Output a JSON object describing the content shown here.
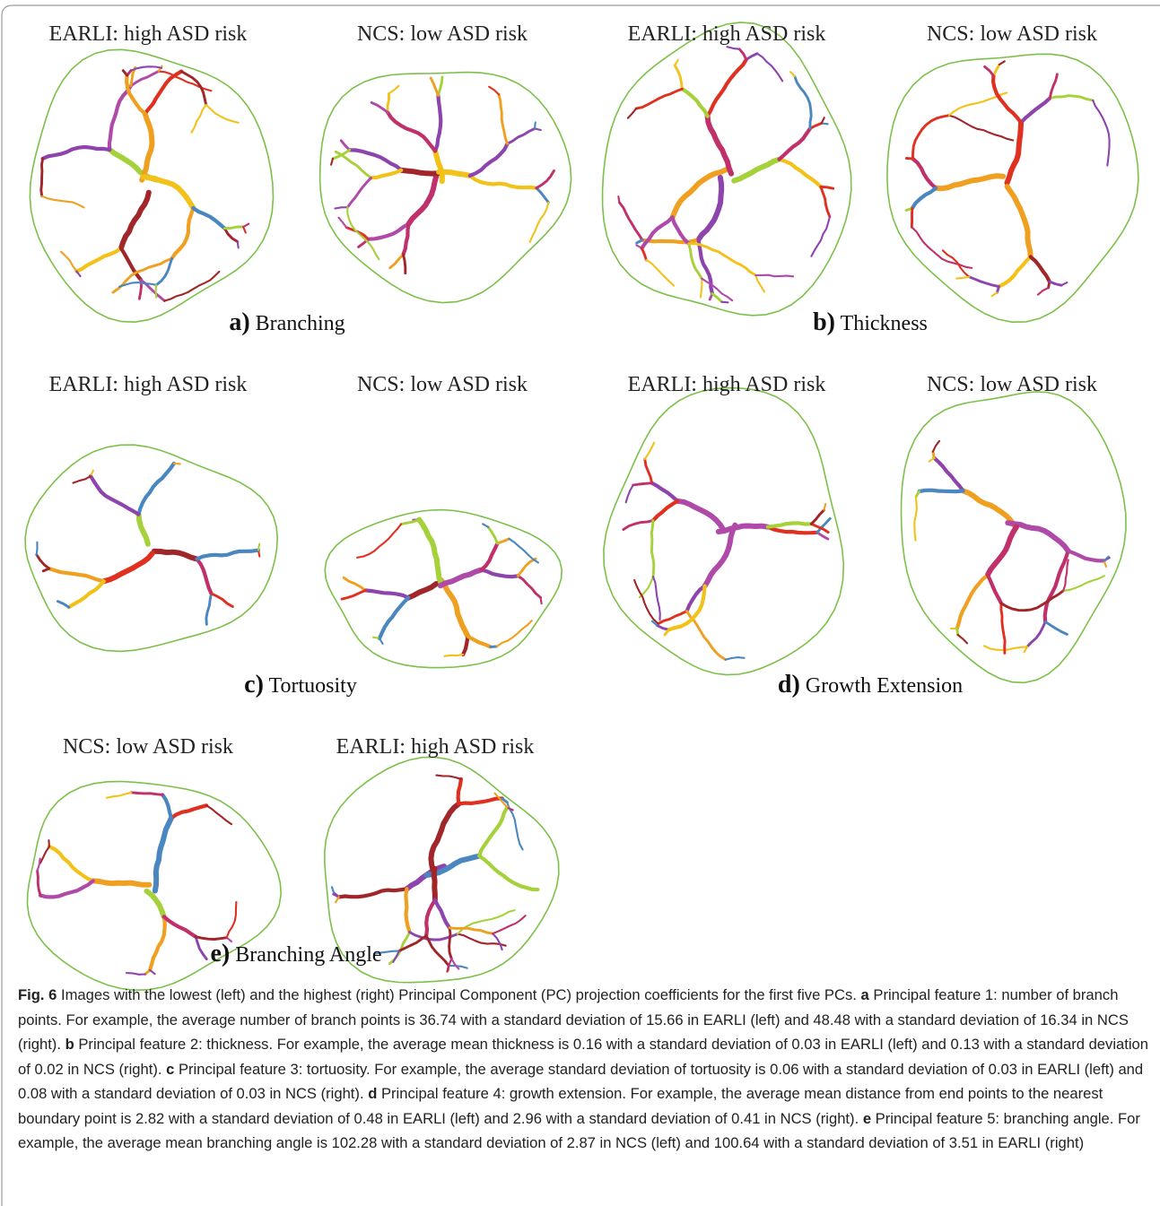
{
  "panels": [
    {
      "label": "a)",
      "name": "Branching",
      "images": [
        "EARLI: high ASD risk",
        "NCS: low ASD risk"
      ]
    },
    {
      "label": "b)",
      "name": "Thickness",
      "images": [
        "EARLI: high ASD risk",
        "NCS: low ASD risk"
      ]
    },
    {
      "label": "c)",
      "name": "Tortuosity",
      "images": [
        "EARLI: high ASD risk",
        "NCS: low ASD risk"
      ]
    },
    {
      "label": "d)",
      "name": "Growth Extension",
      "images": [
        "EARLI: high ASD risk",
        "NCS: low ASD risk"
      ]
    },
    {
      "label": "e)",
      "name": "Branching Angle",
      "images": [
        "NCS: low ASD risk",
        "EARLI: high ASD risk"
      ]
    }
  ],
  "caption": {
    "figure": "Fig. 6",
    "intro": "Images with the lowest (left) and the highest (right) Principal Component (PC) projection coefficients for the first five PCs.",
    "items": [
      {
        "label": "a",
        "text": "Principal feature 1: number of branch points. For example, the average number of branch points is 36.74 with a standard deviation of 15.66 in EARLI (left) and 48.48 with a standard deviation of 16.34 in NCS (right)."
      },
      {
        "label": "b",
        "text": "Principal feature 2: thickness. For example, the average mean thickness is 0.16 with a standard deviation of 0.03 in EARLI (left) and 0.13 with a standard deviation of 0.02 in NCS (right)."
      },
      {
        "label": "c",
        "text": "Principal feature 3: tortuosity. For example, the average standard deviation of tortuosity is 0.06 with a standard deviation of 0.03 in EARLI (left) and 0.08 with a standard deviation of 0.03 in NCS (right)."
      },
      {
        "label": "d",
        "text": "Principal feature 4: growth extension. For example, the average mean distance from end points to the nearest boundary point is 2.82 with a standard deviation of 0.48 in EARLI (left) and 2.96 with a standard deviation of 0.41 in NCS (right)."
      },
      {
        "label": "e",
        "text": "Principal feature 5: branching angle. For example, the average mean branching angle is 102.28 with a standard deviation of 2.87 in NCS (left) and 100.64 with a standard deviation of 3.51 in EARLI (right)"
      }
    ]
  }
}
